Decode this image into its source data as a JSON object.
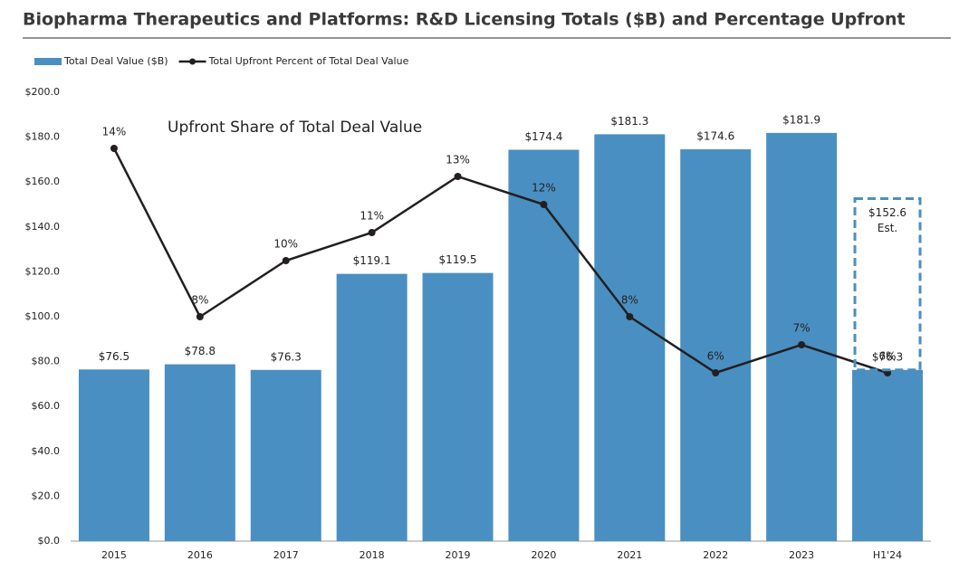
{
  "chart_data": {
    "type": "bar-line",
    "title": "Biopharma Therapeutics and Platforms: R&D Licensing Totals ($B) and Percentage Upfront",
    "annotation": "Upfront Share of Total Deal Value",
    "categories": [
      "2015",
      "2016",
      "2017",
      "2018",
      "2019",
      "2020",
      "2021",
      "2022",
      "2023",
      "H1'24"
    ],
    "series": [
      {
        "name": "Total Deal Value ($B)",
        "type": "bar",
        "color": "#4a8fc1",
        "values": [
          76.5,
          78.8,
          76.3,
          119.1,
          119.5,
          174.4,
          181.3,
          174.6,
          181.9,
          76.3
        ],
        "value_labels": [
          "$76.5",
          "$78.8",
          "$76.3",
          "$119.1",
          "$119.5",
          "$174.4",
          "$181.3",
          "$174.6",
          "$181.9",
          "$76.3"
        ]
      },
      {
        "name": "Total Upfront Percent of Total Deal Value",
        "type": "line",
        "color": "#231f20",
        "axis": "y2",
        "values": [
          14,
          8,
          10,
          11,
          13,
          12,
          8,
          6,
          7,
          6
        ],
        "value_labels": [
          "14%",
          "8%",
          "10%",
          "11%",
          "13%",
          "12%",
          "8%",
          "6%",
          "7%",
          "6%"
        ]
      }
    ],
    "estimate": {
      "value": 152.6,
      "value_label": "$152.6",
      "label": "Est.",
      "color": "#4a8fc1"
    },
    "ylim": [
      0,
      200
    ],
    "yticks": [
      {
        "value": 0,
        "label": "$0.0"
      },
      {
        "value": 20,
        "label": "$20.0"
      },
      {
        "value": 40,
        "label": "$40.0"
      },
      {
        "value": 60,
        "label": "$60.0"
      },
      {
        "value": 80,
        "label": "$80.0"
      },
      {
        "value": 100,
        "label": "$100.0"
      },
      {
        "value": 120,
        "label": "$120.0"
      },
      {
        "value": 140,
        "label": "$140.0"
      },
      {
        "value": 160,
        "label": "$160.0"
      },
      {
        "value": 180,
        "label": "$180.0"
      },
      {
        "value": 200,
        "label": "$200.0"
      }
    ],
    "y2lim": [
      0,
      16
    ],
    "grid": false,
    "legend": "top-left"
  }
}
